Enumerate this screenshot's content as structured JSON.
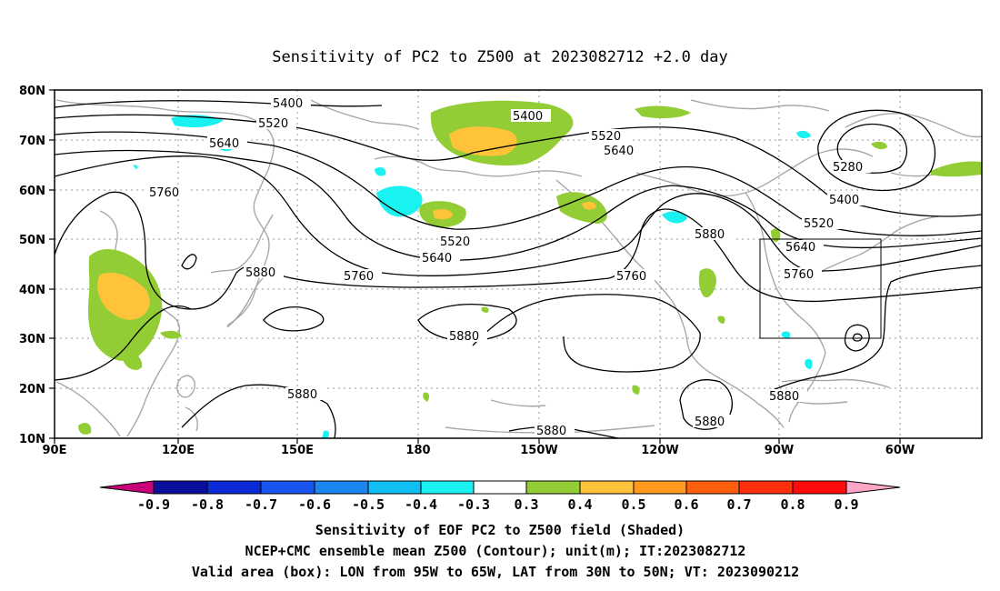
{
  "title": "Sensitivity of PC2 to Z500 at 2023082712 +2.0 day",
  "axes": {
    "lat_labels": [
      "80N",
      "70N",
      "60N",
      "50N",
      "40N",
      "30N",
      "20N",
      "10N"
    ],
    "lon_labels": [
      "90E",
      "120E",
      "150E",
      "180",
      "150W",
      "120W",
      "90W",
      "60W"
    ]
  },
  "colorbar": {
    "tick_labels": [
      "-0.9",
      "-0.8",
      "-0.7",
      "-0.6",
      "-0.5",
      "-0.4",
      "-0.3",
      "0.3",
      "0.4",
      "0.5",
      "0.6",
      "0.7",
      "0.8",
      "0.9"
    ],
    "colors": [
      "#c8007a",
      "#0a109c",
      "#0a2ad8",
      "#1a55f0",
      "#1c86f0",
      "#12bff5",
      "#1af2f2",
      "#ffffff",
      "#93cd36",
      "#ffc33a",
      "#ff9a1e",
      "#ff6010",
      "#ff300c",
      "#ff0a0a",
      "#ffa6c8"
    ]
  },
  "contour_labels": [
    "5400",
    "5520",
    "5640",
    "5760",
    "5880",
    "5280"
  ],
  "valid_box": {
    "lon_from": "95W",
    "lon_to": "65W",
    "lat_from": "30N",
    "lat_to": "50N"
  },
  "captions": [
    "Sensitivity of EOF PC2 to Z500 field (Shaded)",
    "NCEP+CMC ensemble mean Z500 (Contour); unit(m); IT:2023082712",
    "Valid area (box): LON from 95W to 65W, LAT from 30N to 50N; VT: 2023090212"
  ]
}
